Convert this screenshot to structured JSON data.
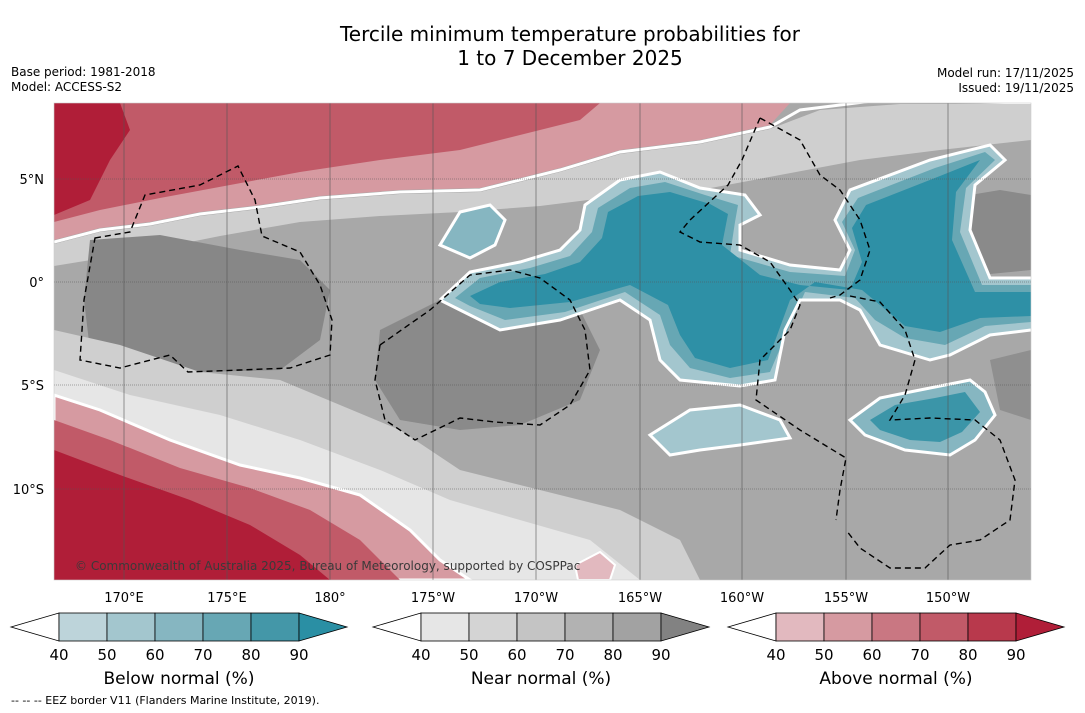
{
  "title": {
    "line1": "Tercile minimum temperature probabilities for",
    "line2": "1 to 7 December 2025"
  },
  "meta_left": {
    "base_period": "Base period: 1981-2018",
    "model": "Model: ACCESS-S2"
  },
  "meta_right": {
    "model_run": "Model run: 17/11/2025",
    "issued": "Issued: 19/11/2025"
  },
  "map": {
    "lat_labels": [
      "5°N",
      "0°",
      "5°S",
      "10°S"
    ],
    "lon_labels": [
      "170°E",
      "175°E",
      "180°",
      "175°W",
      "170°W",
      "165°W",
      "160°W",
      "155°W",
      "150°W"
    ],
    "copyright": "© Commonwealth of Australia 2025, Bureau of Meteorology, supported by COSPPac"
  },
  "colorbars": [
    {
      "title": "Below normal (%)",
      "ticks": [
        "40",
        "50",
        "60",
        "70",
        "80",
        "90"
      ],
      "colors": [
        "#bdd4da",
        "#a3c6ce",
        "#86b6c1",
        "#67a7b4",
        "#4497a8",
        "#2a8fa4"
      ]
    },
    {
      "title": "Near normal (%)",
      "ticks": [
        "40",
        "50",
        "60",
        "70",
        "80",
        "90"
      ],
      "colors": [
        "#e6e6e6",
        "#d4d4d4",
        "#c4c4c4",
        "#b2b2b2",
        "#a2a2a2",
        "#828282"
      ]
    },
    {
      "title": "Above normal (%)",
      "ticks": [
        "40",
        "50",
        "60",
        "70",
        "80",
        "90"
      ],
      "colors": [
        "#e2b9bf",
        "#d69aa1",
        "#c97782",
        "#c15a68",
        "#b8394c",
        "#b01e38"
      ]
    }
  ],
  "footer": "--  --  -- EEZ border V11 (Flanders Marine Institute, 2019)."
}
